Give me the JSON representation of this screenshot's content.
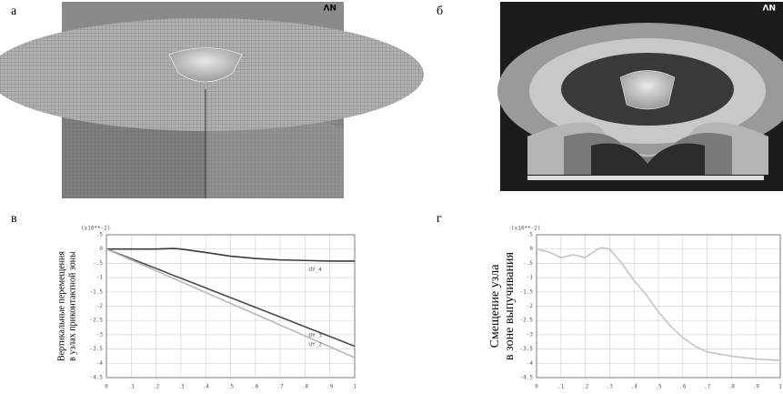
{
  "panels": [
    {
      "label": "а",
      "logo": "ΛN"
    },
    {
      "label": "б",
      "logo": "ΛN"
    },
    {
      "label": "в"
    },
    {
      "label": "г"
    }
  ],
  "chart_data": [
    {
      "type": "line",
      "multiplier": "(x10**-2)",
      "ylabel": [
        "Вертикальные перемещения",
        "в узлах приконтактной зоны"
      ],
      "x": [
        0,
        0.1,
        0.2,
        0.27,
        0.3,
        0.4,
        0.5,
        0.6,
        0.7,
        0.8,
        0.9,
        1
      ],
      "series": [
        {
          "name": "UY_4",
          "color": "#3a3a3a",
          "values": [
            0,
            0,
            0,
            0.02,
            0,
            -0.12,
            -0.25,
            -0.33,
            -0.38,
            -0.4,
            -0.42,
            -0.42
          ]
        },
        {
          "name": "UY_3",
          "color": "#4a4a4a",
          "values": [
            0,
            -0.34,
            -0.68,
            -0.92,
            -1.02,
            -1.36,
            -1.7,
            -2.04,
            -2.38,
            -2.72,
            -3.06,
            -3.4
          ]
        },
        {
          "name": "UY_2",
          "color": "#b8b8b8",
          "values": [
            0,
            -0.38,
            -0.76,
            -1.03,
            -1.14,
            -1.52,
            -1.9,
            -2.28,
            -2.66,
            -3.04,
            -3.42,
            -3.8
          ]
        }
      ],
      "xlim": [
        0,
        1
      ],
      "xticks": [
        0,
        {
          "value": 0.1,
          "label": ".1"
        },
        {
          "value": 0.2,
          "label": ".2"
        },
        {
          "value": 0.3,
          "label": ".3"
        },
        {
          "value": 0.4,
          "label": ".4"
        },
        {
          "value": 0.5,
          "label": ".5"
        },
        {
          "value": 0.6,
          "label": ".6"
        },
        {
          "value": 0.7,
          "label": ".7"
        },
        {
          "value": 0.8,
          "label": ".8"
        },
        {
          "value": 0.9,
          "label": ".9"
        },
        1
      ],
      "ylim": [
        -4.5,
        0.5
      ],
      "yticks": [
        {
          "value": 0.5,
          "label": ".5"
        },
        0,
        {
          "value": -0.5,
          "label": "-.5"
        },
        -1,
        -1.5,
        -2,
        -2.5,
        -3,
        -3.5,
        -4,
        -4.5
      ],
      "grid": true
    },
    {
      "type": "line",
      "multiplier": "(x10**-2)",
      "ylabel": [
        "Смещение узла",
        "в зоне выпучивания"
      ],
      "x": [
        0,
        0.05,
        0.1,
        0.15,
        0.2,
        0.25,
        0.27,
        0.3,
        0.35,
        0.4,
        0.45,
        0.5,
        0.55,
        0.6,
        0.65,
        0.7,
        0.8,
        0.9,
        1
      ],
      "series": [
        {
          "color": "#c4c4c4",
          "values": [
            0,
            -0.1,
            -0.3,
            -0.2,
            -0.3,
            0,
            0.05,
            0,
            -0.5,
            -1.1,
            -1.6,
            -2.2,
            -2.7,
            -3.1,
            -3.4,
            -3.6,
            -3.75,
            -3.85,
            -3.9
          ]
        }
      ],
      "xlim": [
        0,
        1
      ],
      "xticks": [
        0,
        {
          "value": 0.1,
          "label": ".1"
        },
        {
          "value": 0.2,
          "label": ".2"
        },
        {
          "value": 0.3,
          "label": ".3"
        },
        {
          "value": 0.4,
          "label": ".4"
        },
        {
          "value": 0.5,
          "label": ".5"
        },
        {
          "value": 0.6,
          "label": ".6"
        },
        {
          "value": 0.7,
          "label": ".7"
        },
        {
          "value": 0.8,
          "label": ".8"
        },
        {
          "value": 0.9,
          "label": ".9"
        },
        1
      ],
      "ylim": [
        -4.5,
        0.5
      ],
      "yticks": [
        {
          "value": 0.5,
          "label": ".5"
        },
        0,
        {
          "value": -0.5,
          "label": "-.5"
        },
        -1,
        -1.5,
        -2,
        -2.5,
        -3,
        -3.5,
        -4,
        -4.5
      ],
      "grid": true
    }
  ]
}
